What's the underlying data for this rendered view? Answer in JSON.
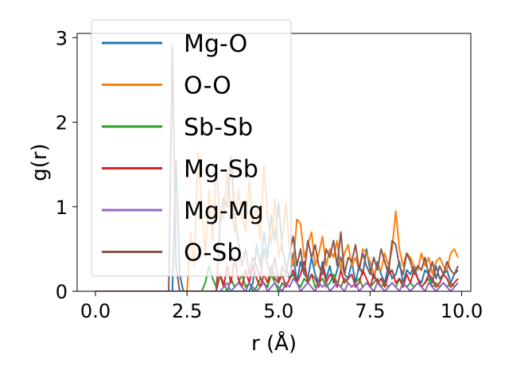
{
  "chart_data": {
    "type": "line",
    "title": "",
    "xlabel": "r (Å)",
    "ylabel": "g(r)",
    "xlim": [
      -0.5,
      10.25
    ],
    "ylim": [
      0,
      3.05
    ],
    "xticks": [
      0.0,
      2.5,
      5.0,
      7.5,
      10.0
    ],
    "xtick_labels": [
      "0.0",
      "2.5",
      "5.0",
      "7.5",
      "10.0"
    ],
    "yticks": [
      0,
      1,
      2,
      3
    ],
    "ytick_labels": [
      "0",
      "1",
      "2",
      "3"
    ],
    "grid": false,
    "legend_position": "upper-left",
    "x": [
      0.0,
      0.1,
      0.2,
      0.3,
      0.4,
      0.5,
      0.6,
      0.7,
      0.8,
      0.9,
      1.0,
      1.1,
      1.2,
      1.3,
      1.4,
      1.5,
      1.6,
      1.7,
      1.8,
      1.9,
      2.0,
      2.1,
      2.2,
      2.3,
      2.4,
      2.5,
      2.6,
      2.7,
      2.8,
      2.9,
      3.0,
      3.1,
      3.2,
      3.3,
      3.4,
      3.5,
      3.6,
      3.7,
      3.8,
      3.9,
      4.0,
      4.1,
      4.2,
      4.3,
      4.4,
      4.5,
      4.6,
      4.7,
      4.8,
      4.9,
      5.0,
      5.1,
      5.2,
      5.3,
      5.4,
      5.5,
      5.6,
      5.7,
      5.8,
      5.9,
      6.0,
      6.1,
      6.2,
      6.3,
      6.4,
      6.5,
      6.6,
      6.7,
      6.8,
      6.9,
      7.0,
      7.1,
      7.2,
      7.3,
      7.4,
      7.5,
      7.6,
      7.7,
      7.8,
      7.9,
      8.0,
      8.1,
      8.2,
      8.3,
      8.4,
      8.5,
      8.6,
      8.7,
      8.8,
      8.9,
      9.0,
      9.1,
      9.2,
      9.3,
      9.4,
      9.5,
      9.6,
      9.7,
      9.8,
      9.9
    ],
    "series": [
      {
        "name": "Mg-O",
        "color": "#1f77b4",
        "values": [
          0,
          0,
          0,
          0,
          0,
          0,
          0,
          0,
          0,
          0,
          0,
          0,
          0,
          0,
          0,
          0,
          0,
          0,
          0,
          0,
          0,
          0,
          1.55,
          0.2,
          0,
          0,
          0,
          0,
          0,
          0,
          0,
          0,
          0,
          0,
          0,
          0,
          0,
          0,
          0,
          0,
          0,
          0,
          0,
          0.1,
          0.55,
          0.3,
          0.7,
          0.4,
          0.9,
          0.6,
          1.05,
          0.5,
          0.3,
          0.15,
          0.45,
          0.1,
          0.35,
          0.2,
          0.15,
          0.4,
          0.2,
          0.1,
          0.35,
          0.15,
          0.3,
          0.1,
          0.25,
          0.4,
          0.2,
          0.15,
          0.35,
          0.1,
          0.3,
          0.2,
          0.5,
          0.25,
          0.15,
          0.35,
          0.2,
          0.1,
          0.3,
          0.15,
          0.2,
          0.35,
          0.1,
          0.25,
          0.2,
          0.3,
          0.15,
          0.1,
          0.25,
          0.2,
          0.1,
          0.3,
          0.15,
          0.2,
          0.25,
          0.1,
          0.2,
          0.25
        ]
      },
      {
        "name": "O-O",
        "color": "#ff7f0e",
        "values": [
          0,
          0,
          0,
          0,
          0,
          0,
          0,
          0,
          0,
          0,
          0,
          0,
          0,
          0,
          0,
          0,
          0,
          0,
          0,
          0,
          0,
          0,
          0,
          0,
          0,
          0,
          0.7,
          0.3,
          1.65,
          1.0,
          0.4,
          1.2,
          0.6,
          1.5,
          0.8,
          0.9,
          1.4,
          1.0,
          0.7,
          1.2,
          0.9,
          0.7,
          1.3,
          0.8,
          1.0,
          0.6,
          1.5,
          0.9,
          0.55,
          1.1,
          0.4,
          0.6,
          1.05,
          0.5,
          0.3,
          0.85,
          0.8,
          0.4,
          0.55,
          0.7,
          0.3,
          0.45,
          0.65,
          0.3,
          0.5,
          0.4,
          0.6,
          0.25,
          0.45,
          0.55,
          0.3,
          0.4,
          0.25,
          0.5,
          0.45,
          0.35,
          0.2,
          0.3,
          0.25,
          0.45,
          0.3,
          0.5,
          0.95,
          0.5,
          0.3,
          0.45,
          0.4,
          0.3,
          0.25,
          0.45,
          0.3,
          0.4,
          0.2,
          0.35,
          0.4,
          0.3,
          0.25,
          0.45,
          0.5,
          0.4
        ]
      },
      {
        "name": "Sb-Sb",
        "color": "#2ca02c",
        "values": [
          0,
          0,
          0,
          0,
          0,
          0,
          0,
          0,
          0,
          0,
          0,
          0,
          0,
          0,
          0,
          0,
          0,
          0,
          0,
          0,
          0,
          0,
          0,
          0,
          0,
          0,
          0,
          0,
          0,
          0,
          0.1,
          0.3,
          0.15,
          0.05,
          0.2,
          0.1,
          0,
          0.15,
          0.05,
          0.1,
          0.2,
          0.05,
          0.1,
          0,
          0.05,
          0.15,
          0.1,
          0.05,
          0.2,
          0.1,
          0,
          0.1,
          0.05,
          0.15,
          0.2,
          0.1,
          0.05,
          0.15,
          0.1,
          0.2,
          0.05,
          0.1,
          0.15,
          0.05,
          0.1,
          0.2,
          0.1,
          0.05,
          0.15,
          0.1,
          0.05,
          0.1,
          0.15,
          0.05,
          0.1,
          0.05,
          0.1,
          0.15,
          0.05,
          0.1,
          0.05,
          0.1,
          0.05,
          0.15,
          0.1,
          0.05,
          0.1,
          0.05,
          0.1,
          0.05,
          0.1,
          0.15,
          0.05,
          0.1,
          0.05,
          0.1,
          0.05,
          0.1,
          0.05,
          0.1
        ]
      },
      {
        "name": "Mg-Sb",
        "color": "#d62728",
        "values": [
          0,
          0,
          0,
          0,
          0,
          0,
          0,
          0,
          0,
          0,
          0,
          0,
          0,
          0,
          0,
          0,
          0,
          0,
          0,
          0,
          0,
          0,
          0,
          0,
          0,
          0,
          0,
          0,
          0,
          0,
          0,
          0,
          0,
          0,
          0.2,
          0.05,
          0.3,
          0.1,
          0.4,
          0.15,
          0.05,
          0.25,
          0.1,
          0.3,
          0.15,
          0.05,
          0.2,
          0.1,
          0.3,
          0.15,
          0.1,
          0.2,
          0.05,
          0.15,
          0.25,
          0.1,
          0.2,
          0.35,
          0.1,
          0.2,
          0.15,
          0.05,
          0.3,
          0.1,
          0.2,
          0.15,
          0.05,
          0.25,
          0.1,
          0.15,
          0.2,
          0.05,
          0.1,
          0.25,
          0.15,
          0.05,
          0.2,
          0.1,
          0.15,
          0.05,
          0.2,
          0.25,
          0.1,
          0.15,
          0.05,
          0.2,
          0.1,
          0.25,
          0.15,
          0.05,
          0.1,
          0.2,
          0.15,
          0.05,
          0.1,
          0.2,
          0.15,
          0.05,
          0.1,
          0.15
        ]
      },
      {
        "name": "Mg-Mg",
        "color": "#9467bd",
        "values": [
          0,
          0,
          0,
          0,
          0,
          0,
          0,
          0,
          0,
          0,
          0,
          0,
          0,
          0,
          0,
          0,
          0,
          0,
          0,
          0,
          0,
          0,
          0,
          0,
          0,
          0,
          0,
          0,
          0,
          0,
          0,
          0,
          0,
          0,
          0,
          0.05,
          0.1,
          0,
          0.05,
          0.1,
          0.05,
          0,
          0.1,
          0.05,
          0,
          0.05,
          0.1,
          0,
          0.05,
          0.1,
          0.05,
          0,
          0.1,
          0.05,
          0.15,
          0.1,
          0,
          0.05,
          0.1,
          0.05,
          0,
          0.1,
          0.05,
          0.1,
          0,
          0.05,
          0.1,
          0.05,
          0,
          0.1,
          0.05,
          0.1,
          0,
          0.05,
          0.1,
          0.05,
          0,
          0.1,
          0.05,
          0,
          0.05,
          0.1,
          0.05,
          0,
          0.1,
          0.05,
          0,
          0.05,
          0.1,
          0.05,
          0,
          0.1,
          0.05,
          0,
          0.05,
          0.1,
          0.05,
          0,
          0.05,
          0.1
        ]
      },
      {
        "name": "O-Sb",
        "color": "#8c564b",
        "values": [
          0,
          0,
          0,
          0,
          0,
          0,
          0,
          0,
          0,
          0,
          0,
          0,
          0,
          0,
          0,
          0,
          0,
          0,
          0,
          0,
          0,
          2.9,
          0.3,
          0,
          0,
          0,
          0,
          0,
          0,
          0,
          0,
          0,
          0,
          0,
          0.8,
          1.1,
          1.0,
          1.6,
          0.9,
          0.6,
          0.3,
          0.5,
          0.2,
          0.4,
          0.3,
          0.15,
          0.5,
          0.3,
          0.2,
          0.4,
          0.1,
          0.3,
          0.2,
          0.45,
          0.65,
          0.3,
          0.5,
          0.2,
          0.6,
          0.4,
          0.55,
          0.3,
          0.2,
          0.5,
          0.4,
          0.6,
          0.3,
          0.7,
          0.2,
          0.4,
          0.35,
          0.55,
          0.25,
          0.45,
          0.3,
          0.2,
          0.4,
          0.25,
          0.5,
          0.35,
          0.2,
          0.6,
          0.55,
          0.3,
          0.2,
          0.45,
          0.35,
          0.2,
          0.3,
          0.25,
          0.4,
          0.2,
          0.35,
          0.15,
          0.3,
          0.2,
          0.35,
          0.25,
          0.2,
          0.3
        ]
      }
    ]
  }
}
